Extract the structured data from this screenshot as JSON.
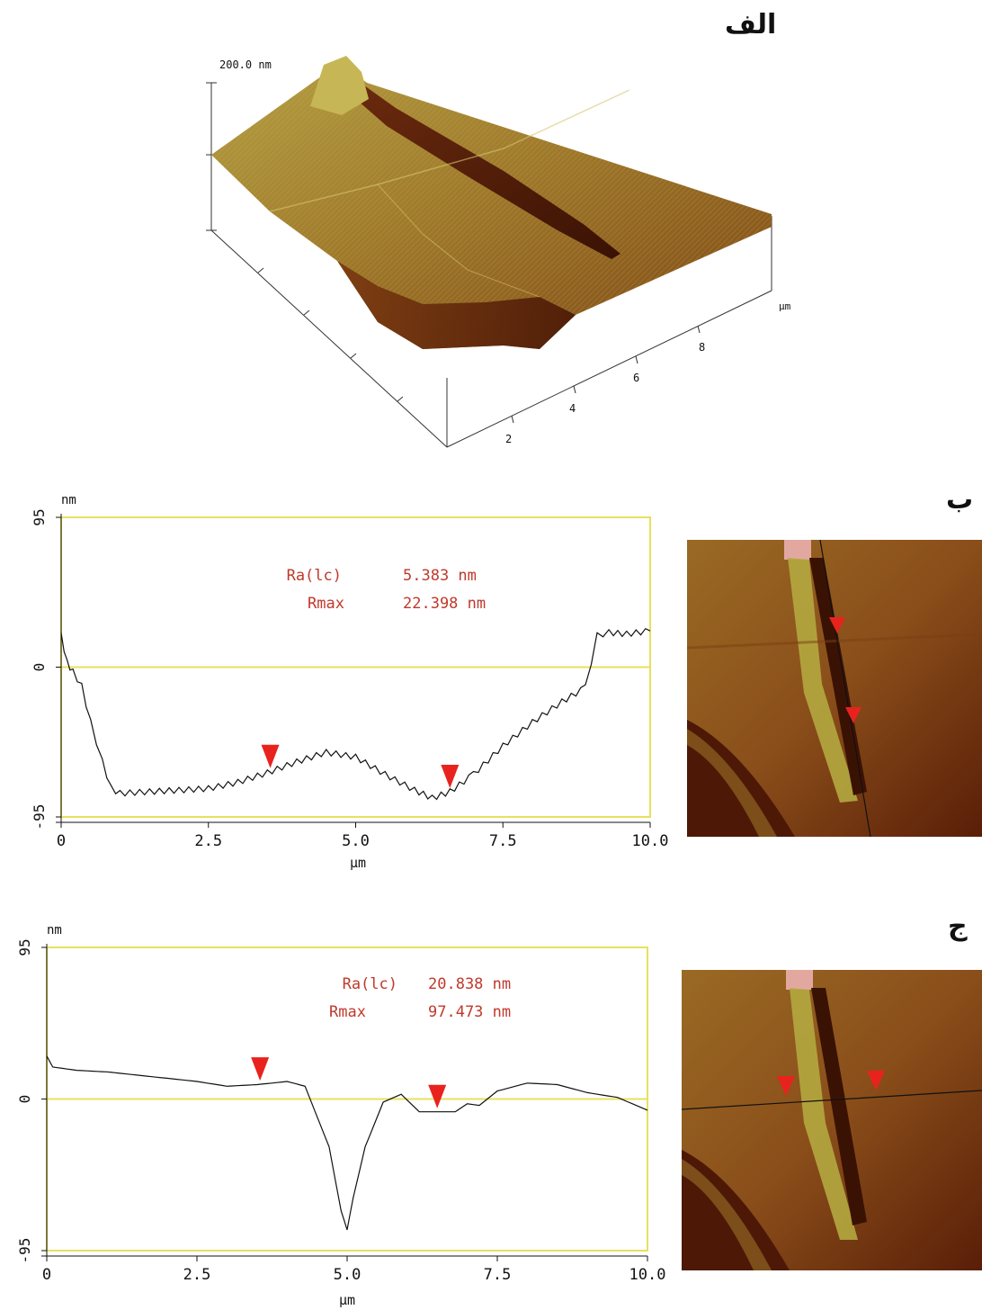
{
  "panel_labels": {
    "a": "الف",
    "b": "ب",
    "c": "ج"
  },
  "surface": {
    "z_scale_label": "200.0 nm",
    "x_unit": "μm",
    "x_ticks": [
      "2",
      "4",
      "6",
      "8"
    ]
  },
  "profile_b": {
    "ra_label": "Ra(lc)",
    "ra_value": "5.383 nm",
    "rmax_label": "Rmax",
    "rmax_value": "22.398 nm"
  },
  "profile_c": {
    "ra_label": "Ra(lc)",
    "ra_value": "20.838 nm",
    "rmax_label": "Rmax",
    "rmax_value": "97.473 nm"
  },
  "colors": {
    "frame": "#e8e060",
    "trace": "#111111",
    "marker": "#e8231e",
    "stats_text": "#c0392b",
    "afm_dark": "#5a1e08",
    "afm_mid": "#9a5a1c",
    "afm_light": "#c8b84a"
  },
  "chart_data": [
    {
      "type": "line",
      "id": "b",
      "ylabel": "nm",
      "xlabel": "μm",
      "ylim": [
        -95,
        95
      ],
      "xlim": [
        0,
        10
      ],
      "x_ticks": [
        "0",
        "2.5",
        "5.0",
        "7.5",
        "10.0"
      ],
      "y_ticks": [
        "95",
        "0",
        "-95"
      ],
      "markers_x": [
        3.55,
        6.6
      ],
      "series": [
        {
          "x": [
            0,
            0.1,
            0.2,
            0.35,
            0.5,
            0.7,
            0.85,
            1.0,
            1.5,
            2.0,
            2.5,
            3.0,
            3.5,
            4.0,
            4.5,
            5.0,
            5.5,
            6.0,
            6.3,
            6.6,
            7.0,
            7.5,
            8.0,
            8.5,
            8.9,
            9.1,
            9.3,
            9.6,
            10.0
          ],
          "y": [
            20,
            3,
            -3,
            -12,
            -35,
            -60,
            -77,
            -80,
            -79,
            -78,
            -77,
            -73,
            -67,
            -60,
            -54,
            -57,
            -68,
            -78,
            -83,
            -79,
            -68,
            -50,
            -35,
            -22,
            -13,
            20,
            22,
            21,
            23
          ]
        }
      ]
    },
    {
      "type": "line",
      "id": "c",
      "ylabel": "nm",
      "xlabel": "μm",
      "ylim": [
        -95,
        95
      ],
      "xlim": [
        0,
        10
      ],
      "x_ticks": [
        "0",
        "2.5",
        "5.0",
        "7.5",
        "10.0"
      ],
      "y_ticks": [
        "95",
        "0",
        "-95"
      ],
      "markers_x": [
        3.55,
        6.5
      ],
      "series": [
        {
          "x": [
            0,
            0.1,
            0.5,
            1.0,
            1.5,
            2.0,
            2.5,
            3.0,
            3.5,
            4.0,
            4.3,
            4.7,
            4.9,
            5.0,
            5.1,
            5.3,
            5.6,
            5.9,
            6.2,
            6.5,
            6.8,
            7.0,
            7.2,
            7.5,
            8.0,
            8.5,
            9.0,
            9.5,
            10.0
          ],
          "y": [
            27,
            20,
            18,
            17,
            15,
            13,
            11,
            8,
            9,
            11,
            8,
            -30,
            -70,
            -82,
            -62,
            -30,
            -2,
            3,
            -8,
            -8,
            -8,
            -3,
            -4,
            5,
            10,
            9,
            4,
            1,
            -7
          ]
        }
      ]
    }
  ]
}
